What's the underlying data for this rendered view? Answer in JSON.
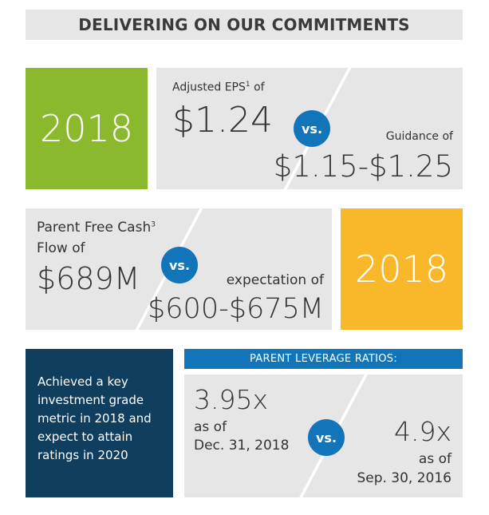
{
  "header": {
    "title": "DELIVERING ON OUR COMMITMENTS"
  },
  "eps": {
    "year": "2018",
    "label": "Adjusted EPS",
    "label_sup": "1",
    "label_suffix": " of",
    "value": "$1.24",
    "vs": "vs.",
    "guidance_label": "Guidance of",
    "guidance_value": "$1.15-$1.25",
    "colors": {
      "year_box": "#8ab92d"
    }
  },
  "cash": {
    "label_line1": "Parent Free Cash",
    "label_sup": "3",
    "label_line2": "Flow of",
    "value": "$689M",
    "vs": "vs.",
    "expectation_label": "expectation of",
    "expectation_value": "$600-$675M",
    "year": "2018",
    "colors": {
      "year_box": "#f8b82a"
    }
  },
  "investment": {
    "text": "Achieved a key investment grade metric in 2018 and expect to attain ratings in 2020",
    "colors": {
      "box": "#0f3e5f"
    }
  },
  "leverage": {
    "header": "PARENT LEVERAGE RATIOS:",
    "left_value": "3.95x",
    "left_asof": "as of",
    "left_date": "Dec. 31, 2018",
    "vs": "vs.",
    "right_value": "4.9x",
    "right_asof": "as of",
    "right_date": "Sep. 30, 2016",
    "colors": {
      "header": "#1375b9",
      "vs": "#1375b9"
    }
  }
}
